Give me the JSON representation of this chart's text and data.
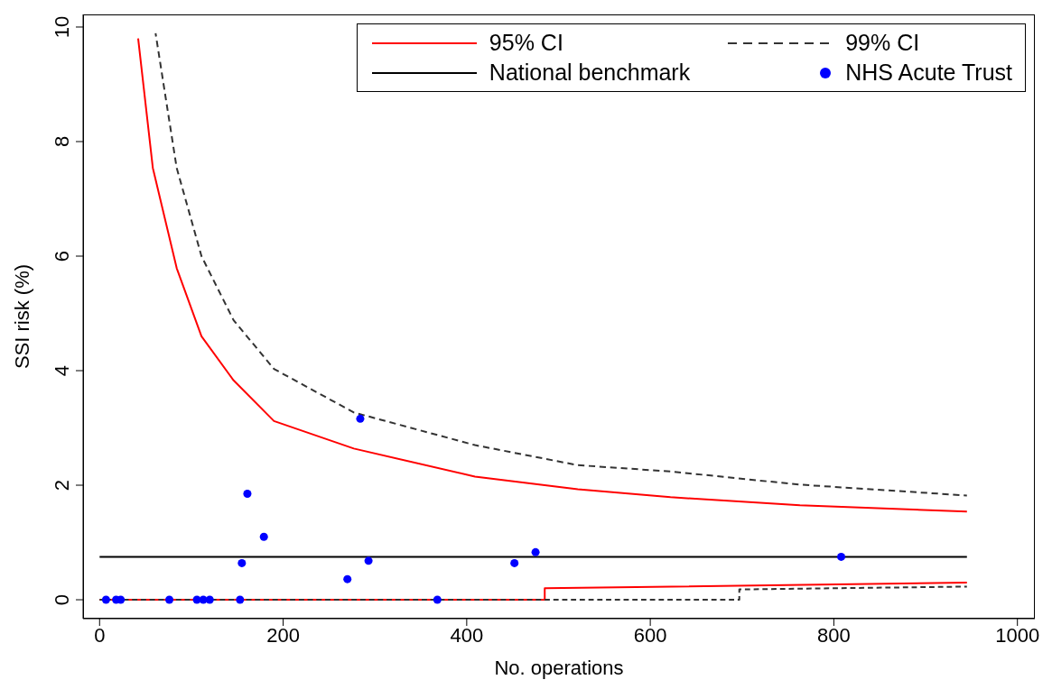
{
  "chart_data": {
    "type": "line",
    "xlabel": "No. operations",
    "ylabel": "SSI risk (%)",
    "xlim": [
      -18,
      1019
    ],
    "ylim": [
      -0.33,
      10.22
    ],
    "xticks": [
      0,
      200,
      400,
      600,
      800,
      1000
    ],
    "yticks": [
      0,
      2,
      4,
      6,
      8,
      10
    ],
    "grid": false,
    "legend": "top right",
    "series": [
      {
        "name": "95% CI",
        "color": "#ff0000",
        "line_style": "solid",
        "x": [
          42,
          58,
          84,
          111,
          146,
          190,
          277,
          409,
          521,
          622,
          763,
          945
        ],
        "values": [
          9.8,
          7.54,
          5.79,
          4.6,
          3.83,
          3.12,
          2.64,
          2.15,
          1.93,
          1.79,
          1.65,
          1.54
        ]
      },
      {
        "name": "99% CI",
        "color": "#333333",
        "line_style": "dashed",
        "x": [
          61,
          84,
          111,
          146,
          190,
          277,
          409,
          521,
          622,
          763,
          945
        ],
        "values": [
          9.89,
          7.54,
          6.0,
          4.88,
          4.03,
          3.27,
          2.7,
          2.35,
          2.24,
          2.01,
          1.82
        ]
      },
      {
        "name": "National benchmark",
        "color": "#000000",
        "line_style": "solid",
        "x": [
          0,
          945
        ],
        "values": [
          0.75,
          0.75
        ]
      },
      {
        "name": "NHS Acute Trust",
        "type": "scatter",
        "color": "#0000ff",
        "marker": "circle",
        "x": [
          7,
          18,
          23,
          76,
          106,
          113,
          120,
          153,
          155,
          161,
          179,
          270,
          284,
          293,
          368,
          452,
          475,
          808
        ],
        "values": [
          0,
          0,
          0,
          0,
          0,
          0,
          0,
          0,
          0.64,
          1.85,
          1.1,
          0.36,
          3.16,
          0.68,
          0,
          0.64,
          0.83,
          0.75
        ]
      },
      {
        "color": "#ff0000",
        "line_style": "solid",
        "x": [
          0,
          485,
          485,
          945
        ],
        "values": [
          0,
          0,
          0.2,
          0.3
        ]
      },
      {
        "color": "#333333",
        "line_style": "dashed",
        "x": [
          0,
          697,
          697,
          945
        ],
        "values": [
          0,
          0,
          0.18,
          0.23
        ]
      }
    ]
  }
}
